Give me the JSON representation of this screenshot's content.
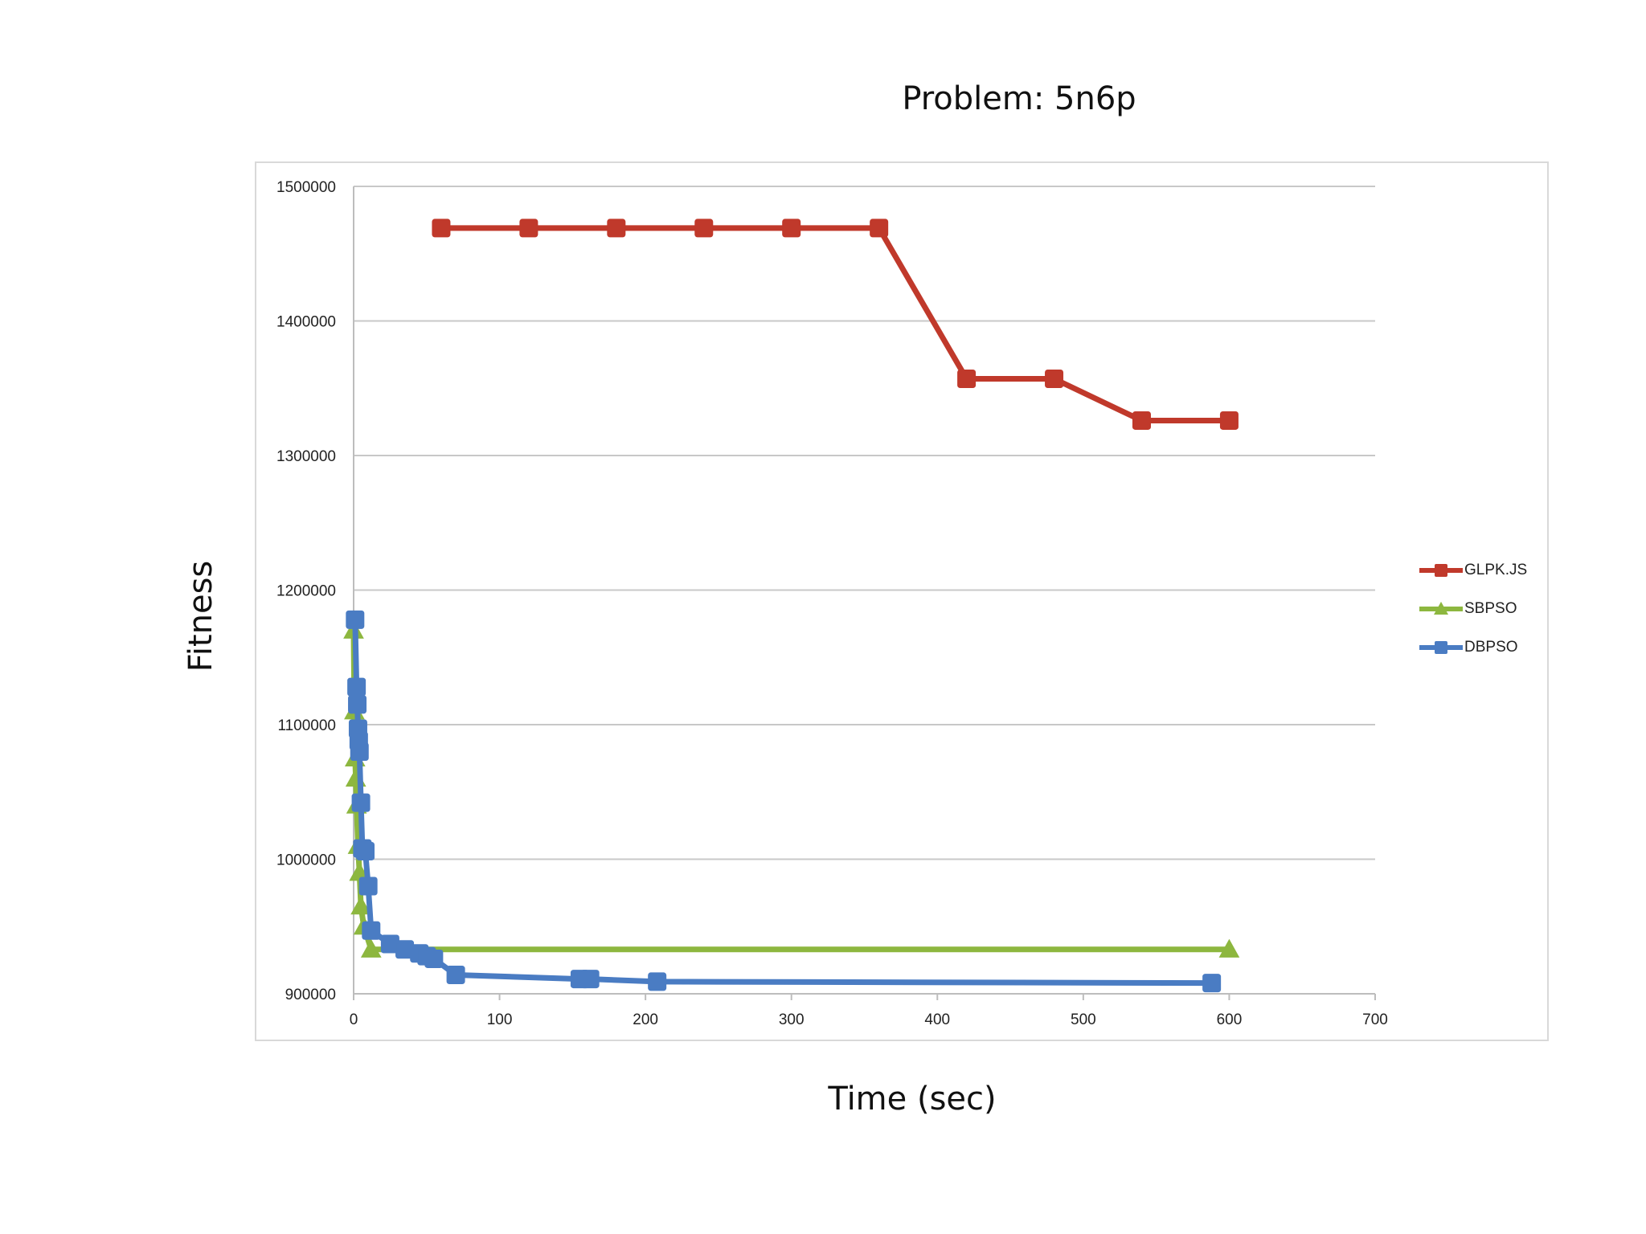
{
  "chart_data": {
    "type": "line",
    "title": "Problem: 5n6p",
    "xlabel": "Time (sec)",
    "ylabel": "Fitness",
    "xlim": [
      0,
      700
    ],
    "ylim": [
      900000,
      1500000
    ],
    "x_ticks": [
      0,
      100,
      200,
      300,
      400,
      500,
      600,
      700
    ],
    "y_ticks": [
      900000,
      1000000,
      1100000,
      1200000,
      1300000,
      1400000,
      1500000
    ],
    "x_tick_labels": [
      "0",
      "100",
      "200",
      "300",
      "400",
      "500",
      "600",
      "700"
    ],
    "y_tick_labels": [
      "900000",
      "1000000",
      "1100000",
      "1200000",
      "1300000",
      "1400000",
      "1500000"
    ],
    "grid": "horizontal",
    "legend_position": "right",
    "series": [
      {
        "name": "GLPK.JS",
        "color": "#c0392b",
        "marker": "square",
        "x": [
          60,
          120,
          180,
          240,
          300,
          360,
          420,
          480,
          540,
          600
        ],
        "y": [
          1469000,
          1469000,
          1469000,
          1469000,
          1469000,
          1469000,
          1357000,
          1357000,
          1326000,
          1326000
        ]
      },
      {
        "name": "SBPSO",
        "color": "#8db73f",
        "marker": "triangle",
        "x": [
          0,
          0.5,
          1,
          1.5,
          2,
          3,
          4,
          5,
          7,
          12,
          600
        ],
        "y": [
          1170000,
          1110000,
          1075000,
          1060000,
          1040000,
          1010000,
          990000,
          965000,
          950000,
          933000,
          933000
        ]
      },
      {
        "name": "DBPSO",
        "color": "#4a7cc3",
        "marker": "square",
        "x": [
          1,
          2,
          2.5,
          3,
          3.5,
          4,
          5,
          6,
          8,
          10,
          12,
          25,
          35,
          45,
          50,
          55,
          70,
          155,
          162,
          208,
          588
        ],
        "y": [
          1178000,
          1128000,
          1115000,
          1097000,
          1088000,
          1080000,
          1042000,
          1008000,
          1006000,
          980000,
          947000,
          937000,
          933000,
          930000,
          928000,
          926000,
          914000,
          911000,
          911000,
          909000,
          908000
        ]
      }
    ]
  }
}
